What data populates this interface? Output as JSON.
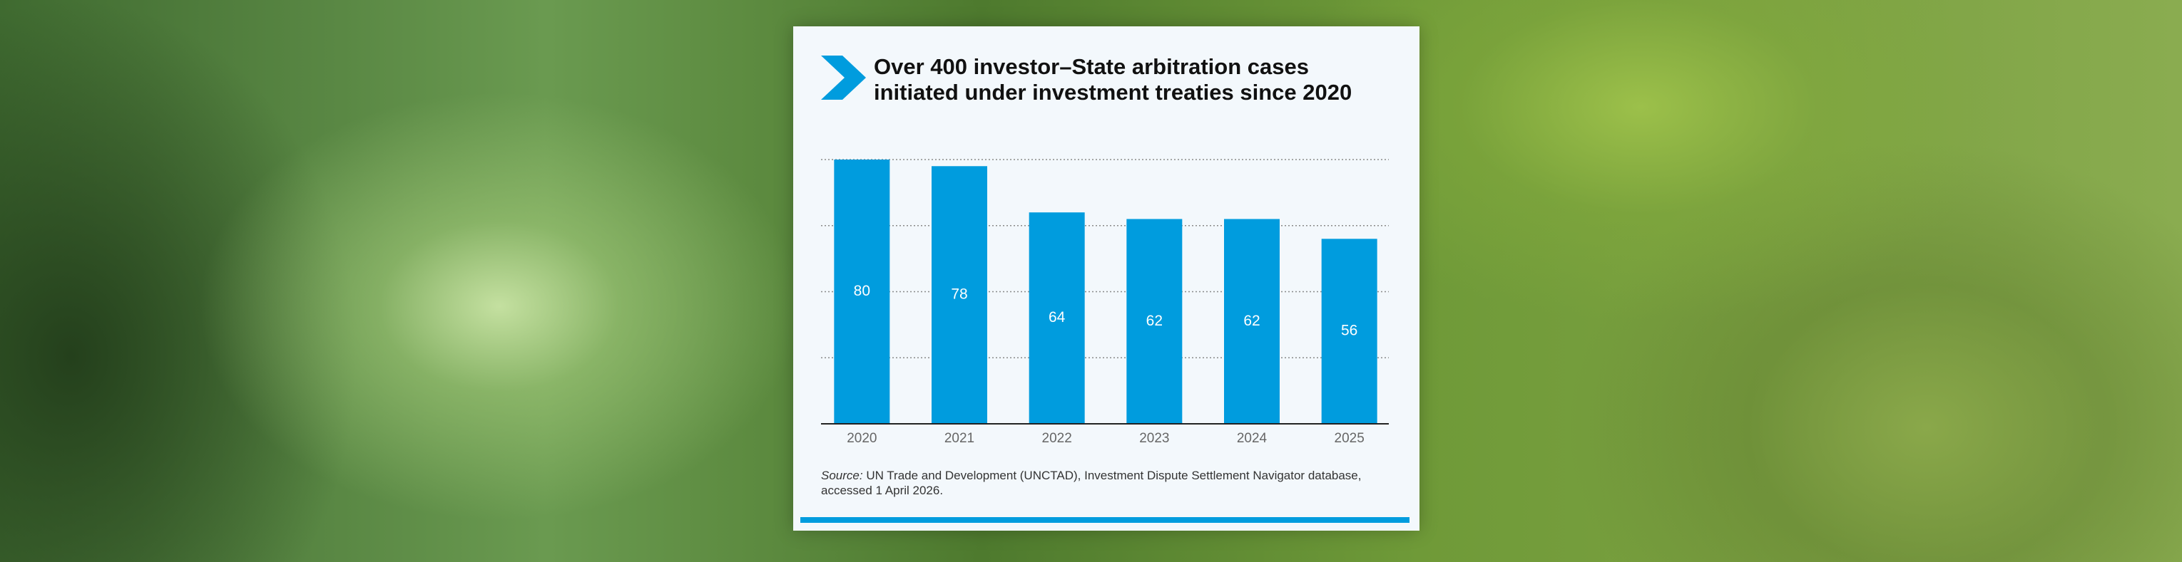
{
  "chart_data": {
    "type": "bar",
    "title": "Over 400 investor–State arbitration cases initiated under investment treaties since 2020",
    "categories": [
      "2020",
      "2021",
      "2022",
      "2023",
      "2024",
      "2025"
    ],
    "values": [
      80,
      78,
      64,
      62,
      62,
      56
    ],
    "color": "#009cde",
    "ylim": [
      0,
      80
    ],
    "yticks": [
      0,
      20,
      40,
      60,
      80
    ],
    "grid": true,
    "source_label": "Source:",
    "source": "UN Trade and Development (UNCTAD), Investment Dispute Settlement Navigator database, accessed 1 April 2026."
  }
}
